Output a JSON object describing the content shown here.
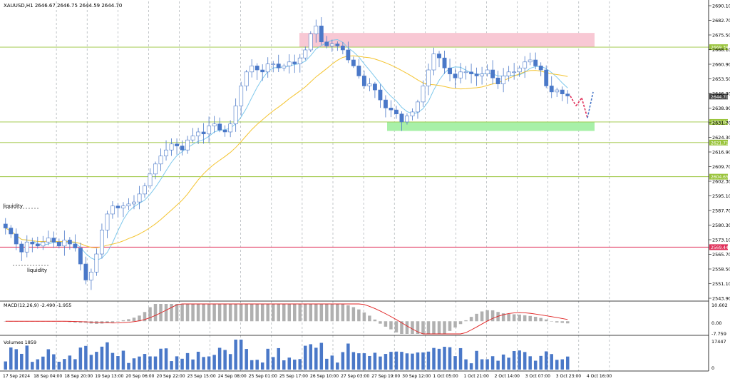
{
  "chart_data": {
    "type": "candlestick",
    "symbol_header": "XAUUSD,H1 2646.67 2646.75 2644.59 2644.70",
    "y_axis": {
      "ticks": [
        "2690.10",
        "2682.70",
        "2675.50",
        "2668.10",
        "2660.90",
        "2653.50",
        "2646.30",
        "2638.90",
        "2631.70",
        "2624.30",
        "2616.90",
        "2609.70",
        "2602.30",
        "2595.10",
        "2587.70",
        "2580.30",
        "2573.10",
        "2565.70",
        "2558.50",
        "2551.10",
        "2543.90"
      ],
      "range": [
        2543.9,
        2690.1
      ]
    },
    "x_axis": {
      "ticks": [
        "17 Sep 2024",
        "18 Sep 04:00",
        "18 Sep 20:00",
        "19 Sep 13:00",
        "20 Sep 06:00",
        "20 Sep 22:00",
        "23 Sep 15:00",
        "24 Sep 08:00",
        "25 Sep 01:00",
        "25 Sep 17:00",
        "26 Sep 10:00",
        "27 Sep 03:00",
        "27 Sep 19:00",
        "30 Sep 12:00",
        "1 Oct 05:00",
        "1 Oct 21:00",
        "2 Oct 14:00",
        "3 Oct 07:00",
        "3 Oct 23:00",
        "4 Oct 16:00"
      ]
    },
    "price_levels": [
      {
        "label": "2669.38",
        "value": 2669.38,
        "color": "#9ac43c"
      },
      {
        "label": "2632.00",
        "value": 2632.0,
        "color": "#9ac43c"
      },
      {
        "label": "2621.71",
        "value": 2621.71,
        "color": "#9ac43c"
      },
      {
        "label": "2604.65",
        "value": 2604.65,
        "color": "#9ac43c"
      },
      {
        "label": "2569.44",
        "value": 2569.44,
        "color": "#e0305a"
      }
    ],
    "current_price": {
      "label": "2644.70",
      "value": 2644.7
    },
    "zones": [
      {
        "kind": "resistance",
        "from": 2669.38,
        "to": 2676.5,
        "color": "#f8c8d4"
      },
      {
        "kind": "support",
        "from": 2627.5,
        "to": 2632.0,
        "color": "#a8f0a8"
      }
    ],
    "annotations": [
      "liquidity",
      "liquidity"
    ],
    "candles_close_path": [
      2579,
      2576,
      2571,
      2567,
      2572,
      2571,
      2570,
      2572,
      2574,
      2572,
      2570,
      2573,
      2571,
      2569,
      2561,
      2553,
      2557,
      2566,
      2578,
      2586,
      2590,
      2589,
      2590,
      2591,
      2592,
      2596,
      2600,
      2606,
      2611,
      2615,
      2618,
      2621,
      2620,
      2618,
      2623,
      2625,
      2627,
      2626,
      2630,
      2631,
      2628,
      2627,
      2631,
      2640,
      2650,
      2657,
      2660,
      2658,
      2657,
      2661,
      2661,
      2659,
      2660,
      2662,
      2661,
      2664,
      2668,
      2676,
      2680,
      2672,
      2670,
      2671,
      2670,
      2668,
      2663,
      2660,
      2655,
      2650,
      2651,
      2648,
      2643,
      2639,
      2638,
      2636,
      2632,
      2635,
      2637,
      2642,
      2650,
      2658,
      2666,
      2664,
      2659,
      2656,
      2654,
      2657,
      2657,
      2656,
      2655,
      2656,
      2658,
      2654,
      2651,
      2655,
      2657,
      2657,
      2659,
      2662,
      2663,
      2660,
      2658,
      2650,
      2647,
      2648,
      2646,
      2645
    ],
    "forecast": {
      "points": [
        2645,
        2640,
        2644,
        2634,
        2647
      ],
      "colors": [
        "#e0305a",
        "#4a78c8"
      ]
    },
    "indicators": {
      "macd": {
        "label": "MACD(12,26,9) -2.490 -1.955",
        "ticks": [
          "10.602",
          "0.00",
          "-7.759"
        ],
        "range": [
          -7.759,
          10.602
        ]
      },
      "volumes": {
        "label": "Volumes 1859",
        "ticks": [
          "17447",
          "0"
        ],
        "range": [
          0,
          17447
        ]
      }
    },
    "grid": true
  },
  "colors": {
    "bull": "#4a78c8",
    "bear": "#4a78c8",
    "ma_fast": "#7ec8ec",
    "ma_slow": "#f4c430",
    "macd_signal": "#e02020",
    "macd_hist": "#b0b0b0",
    "volume": "#4a78c8",
    "grid": "#9aa0a6"
  }
}
